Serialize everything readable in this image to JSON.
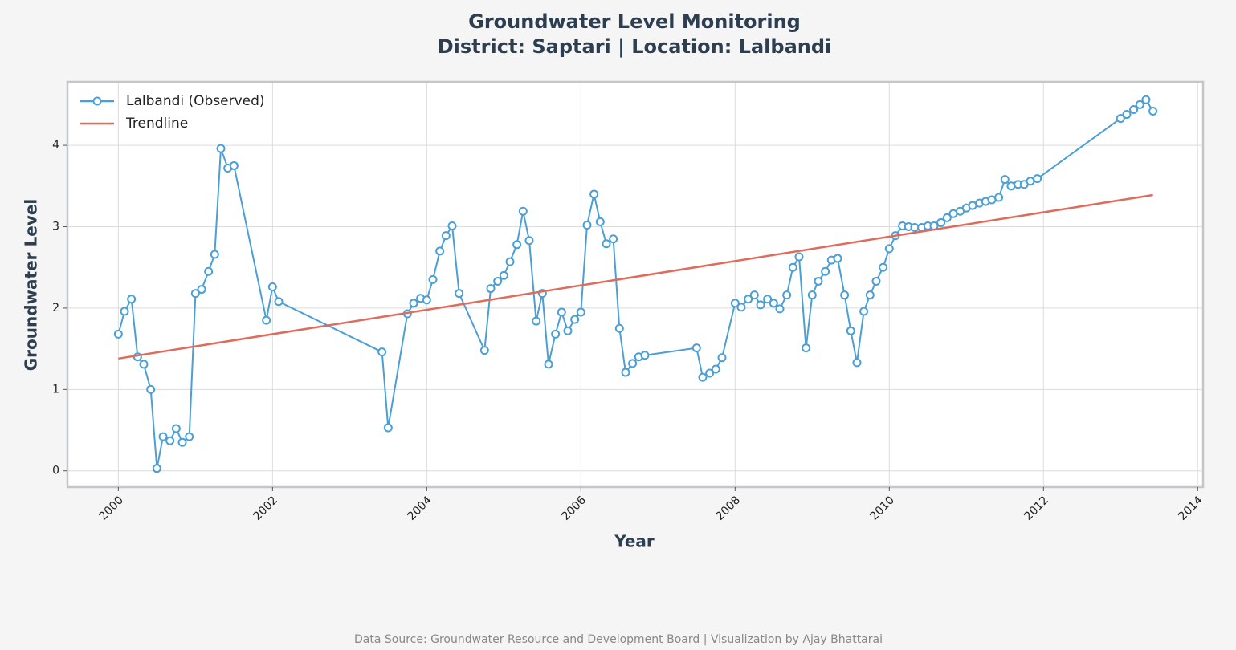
{
  "chart_data": {
    "type": "line",
    "title": "Groundwater Level Monitoring",
    "subtitle": "District: Saptari | Location: Lalbandi",
    "xlabel": "Year",
    "ylabel": "Groundwater Level",
    "source": "Data Source: Groundwater Resource and Development Board | Visualization by Ajay Bhattarai",
    "xlim": [
      1999.34,
      2014.07
    ],
    "ylim": [
      -0.2,
      4.78
    ],
    "xticks": [
      2000,
      2002,
      2004,
      2006,
      2008,
      2010,
      2012,
      2014
    ],
    "yticks": [
      0,
      1,
      2,
      3,
      4
    ],
    "grid": true,
    "legend": "upper left",
    "series": [
      {
        "name": "Lalbandi (Observed)",
        "color": "#4a9fd6",
        "marker": true,
        "x": [
          2000,
          2000.08,
          2000.17,
          2000.25,
          2000.33,
          2000.42,
          2000.5,
          2000.58,
          2000.67,
          2000.75,
          2000.83,
          2000.92,
          2001,
          2001.08,
          2001.17,
          2001.25,
          2001.33,
          2001.42,
          2001.5,
          2001.92,
          2002,
          2002.08,
          2003.42,
          2003.5,
          2003.75,
          2003.83,
          2003.92,
          2004,
          2004.08,
          2004.17,
          2004.25,
          2004.33,
          2004.42,
          2004.75,
          2004.83,
          2004.92,
          2005,
          2005.08,
          2005.17,
          2005.25,
          2005.33,
          2005.42,
          2005.5,
          2005.58,
          2005.67,
          2005.75,
          2005.83,
          2005.92,
          2006,
          2006.08,
          2006.17,
          2006.25,
          2006.33,
          2006.42,
          2006.5,
          2006.58,
          2006.67,
          2006.75,
          2006.83,
          2007.5,
          2007.58,
          2007.67,
          2007.75,
          2007.83,
          2008,
          2008.08,
          2008.17,
          2008.25,
          2008.33,
          2008.42,
          2008.5,
          2008.58,
          2008.67,
          2008.75,
          2008.83,
          2008.92,
          2009,
          2009.08,
          2009.17,
          2009.25,
          2009.33,
          2009.42,
          2009.5,
          2009.58,
          2009.67,
          2009.75,
          2009.83,
          2009.92,
          2010,
          2010.08,
          2010.17,
          2010.25,
          2010.33,
          2010.42,
          2010.5,
          2010.58,
          2010.67,
          2010.75,
          2010.83,
          2010.92,
          2011,
          2011.08,
          2011.17,
          2011.25,
          2011.33,
          2011.42,
          2011.5,
          2011.58,
          2011.67,
          2011.75,
          2011.83,
          2011.92,
          2013,
          2013.08,
          2013.17,
          2013.25,
          2013.33,
          2013.42
        ],
        "values": [
          1.68,
          1.96,
          2.11,
          1.4,
          1.31,
          1.0,
          0.03,
          0.42,
          0.37,
          0.52,
          0.35,
          0.42,
          2.18,
          2.23,
          2.45,
          2.66,
          3.96,
          3.72,
          3.75,
          1.85,
          2.26,
          2.08,
          1.46,
          0.53,
          1.93,
          2.06,
          2.12,
          2.1,
          2.35,
          2.7,
          2.89,
          3.01,
          2.18,
          1.48,
          2.24,
          2.33,
          2.4,
          2.57,
          2.78,
          3.19,
          2.83,
          1.84,
          2.18,
          1.31,
          1.68,
          1.95,
          1.72,
          1.86,
          1.95,
          3.02,
          3.4,
          3.06,
          2.79,
          2.85,
          1.75,
          1.21,
          1.32,
          1.4,
          1.42,
          1.51,
          1.15,
          1.2,
          1.25,
          1.39,
          2.06,
          2.01,
          2.11,
          2.16,
          2.04,
          2.11,
          2.06,
          1.99,
          2.16,
          2.5,
          2.63,
          1.51,
          2.16,
          2.33,
          2.45,
          2.59,
          2.61,
          2.16,
          1.72,
          1.33,
          1.96,
          2.16,
          2.33,
          2.5,
          2.73,
          2.89,
          3.01,
          3.0,
          2.99,
          2.99,
          3.01,
          3.01,
          3.05,
          3.11,
          3.16,
          3.19,
          3.23,
          3.26,
          3.29,
          3.31,
          3.33,
          3.36,
          3.58,
          3.5,
          3.52,
          3.52,
          3.56,
          3.59,
          4.33,
          4.38,
          4.44,
          4.5,
          4.56,
          4.42
        ]
      },
      {
        "name": "Trendline",
        "color": "#e06b5a",
        "marker": false,
        "x": [
          2000,
          2013.42
        ],
        "values": [
          1.38,
          3.39
        ]
      }
    ]
  }
}
